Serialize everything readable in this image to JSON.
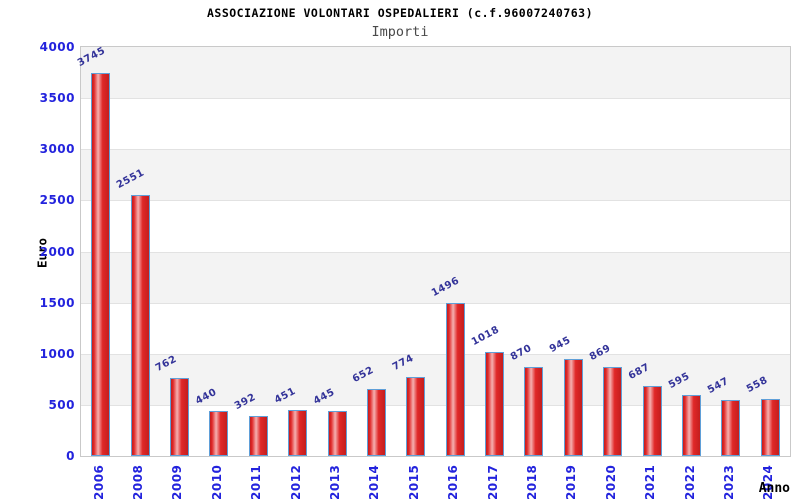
{
  "chart_data": {
    "type": "bar",
    "title": "ASSOCIAZIONE VOLONTARI OSPEDALIERI (c.f.96007240763)",
    "subtitle": "Importi",
    "xlabel": "Anno",
    "ylabel": "Euro",
    "categories": [
      "2006",
      "2008",
      "2009",
      "2010",
      "2011",
      "2012",
      "2013",
      "2014",
      "2015",
      "2016",
      "2017",
      "2018",
      "2019",
      "2020",
      "2021",
      "2022",
      "2023",
      "2024"
    ],
    "values": [
      3745,
      2551,
      762,
      440,
      392,
      451,
      445,
      652,
      774,
      1496,
      1018,
      870,
      945,
      869,
      687,
      595,
      547,
      558
    ],
    "ylim": [
      0,
      4000
    ],
    "ytick_step": 500,
    "grid": "horizontal-bands-alternating",
    "legend": "none",
    "colors": {
      "bar_fill": "#e02828",
      "bar_dark": "#c41e1e",
      "bar_highlight": "#f5b0b0",
      "bar_border": "#5f9fd8",
      "axis_tick_label": "#2323dd",
      "value_label": "#333399",
      "band_gray": "#f3f3f3",
      "gridline": "#e2e2e2",
      "plot_border": "#c9c9c9"
    }
  }
}
